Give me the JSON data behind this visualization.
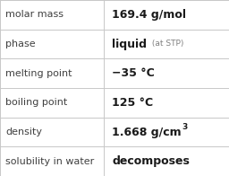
{
  "rows": [
    {
      "label": "molar mass",
      "value": "169.4 g/mol",
      "value_suffix": null,
      "value_superscript": null
    },
    {
      "label": "phase",
      "value": "liquid",
      "value_suffix": " (at STP)",
      "value_superscript": null
    },
    {
      "label": "melting point",
      "value": "−35 °C",
      "value_suffix": null,
      "value_superscript": null
    },
    {
      "label": "boiling point",
      "value": "125 °C",
      "value_suffix": null,
      "value_superscript": null
    },
    {
      "label": "density",
      "value": "1.668 g/cm",
      "value_suffix": null,
      "value_superscript": "3"
    },
    {
      "label": "solubility in water",
      "value": "decomposes",
      "value_suffix": null,
      "value_superscript": null
    }
  ],
  "background_color": "#ffffff",
  "grid_color": "#c8c8c8",
  "label_color": "#404040",
  "value_color": "#1a1a1a",
  "suffix_color": "#808080",
  "label_fontsize": 8.0,
  "value_fontsize": 9.0,
  "suffix_fontsize": 6.5,
  "superscript_fontsize": 6.5,
  "col_split": 0.455,
  "fig_width": 2.56,
  "fig_height": 1.96,
  "dpi": 100
}
